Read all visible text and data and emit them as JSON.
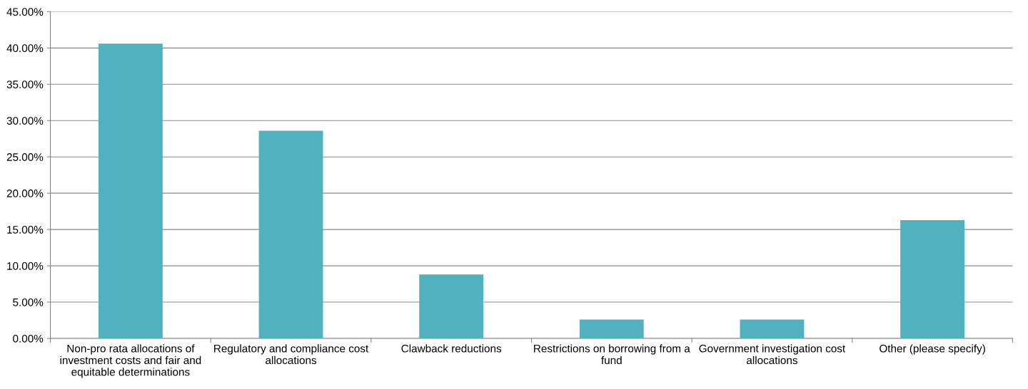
{
  "chart_data": {
    "type": "bar",
    "categories": [
      "Non-pro rata allocations of investment costs and fair and equitable determinations",
      "Regulatory and compliance cost allocations",
      "Clawback reductions",
      "Restrictions on borrowing from a fund",
      "Government investigation cost allocations",
      "Other (please specify)"
    ],
    "values": [
      40.6,
      28.6,
      8.8,
      2.6,
      2.6,
      16.3
    ],
    "color": "#52b1be",
    "ylim": [
      0,
      45
    ],
    "yticks": [
      {
        "value": 0,
        "label": "0.00%"
      },
      {
        "value": 5,
        "label": "5.00%"
      },
      {
        "value": 10,
        "label": "10.00%"
      },
      {
        "value": 15,
        "label": "15.00%"
      },
      {
        "value": 20,
        "label": "20.00%"
      },
      {
        "value": 25,
        "label": "25.00%"
      },
      {
        "value": 30,
        "label": "30.00%"
      },
      {
        "value": 35,
        "label": "35.00%"
      },
      {
        "value": 40,
        "label": "40.00%"
      },
      {
        "value": 45,
        "label": "45.00%"
      }
    ],
    "grid": "y"
  }
}
